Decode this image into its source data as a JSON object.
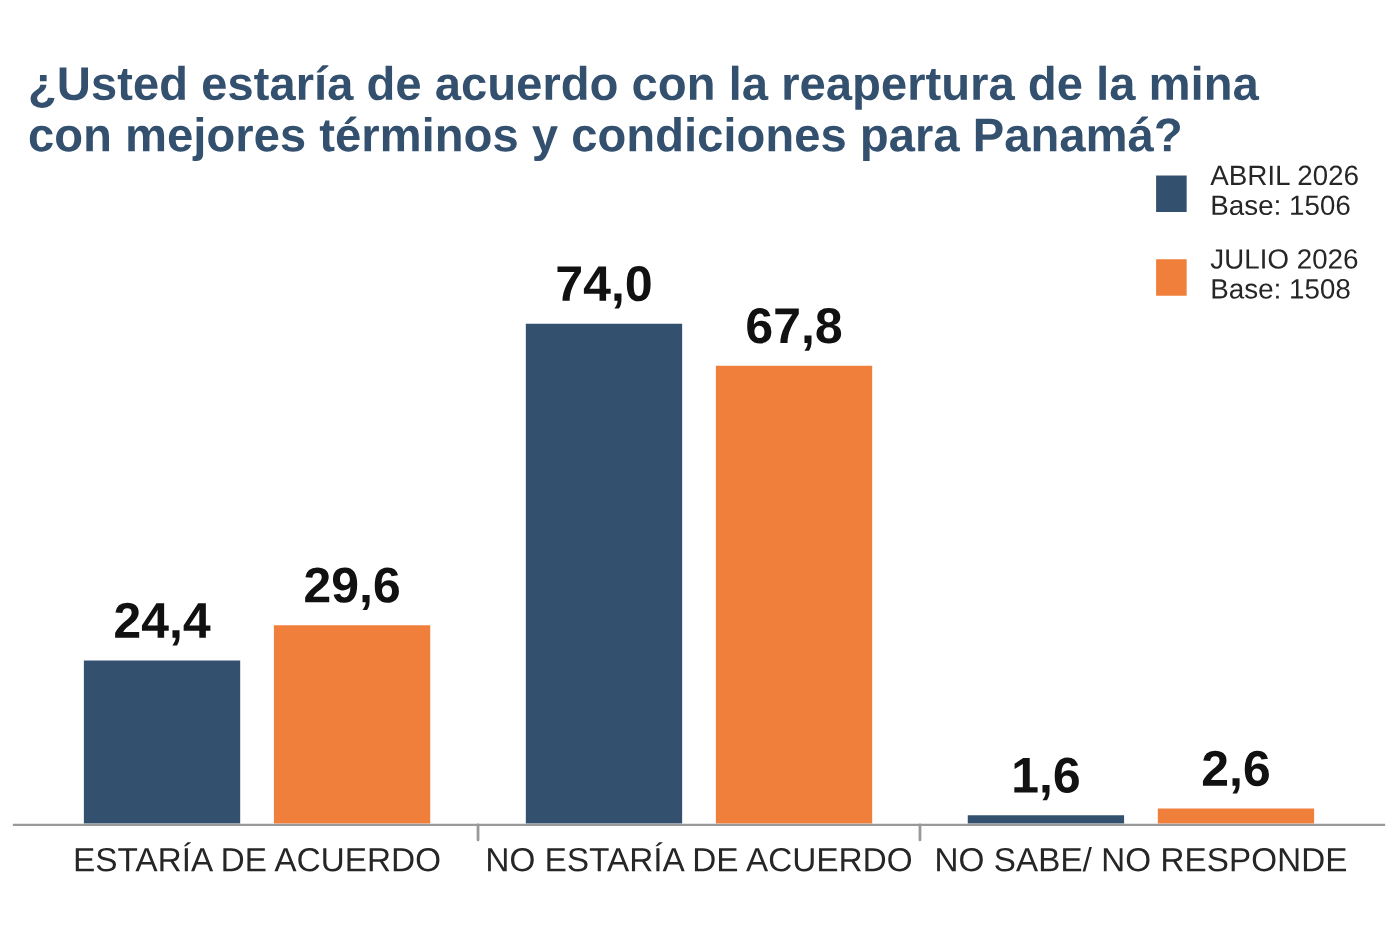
{
  "chart_data": {
    "type": "bar",
    "title": "¿Usted estaría de acuerdo con la reapertura de la mina\ncon mejores términos y condiciones para Panamá?",
    "categories": [
      "ESTARÍA DE ACUERDO",
      "NO ESTARÍA DE ACUERDO",
      "NO SABE/ NO RESPONDE"
    ],
    "series": [
      {
        "name": "ABRIL 2026\nBase: 1506",
        "color": "#34506f",
        "values": [
          24.4,
          74.0,
          1.6
        ],
        "value_labels": [
          "24,4",
          "74,0",
          "1,6"
        ]
      },
      {
        "name": "JULIO 2026\nBase: 1508",
        "color": "#f07f3c",
        "values": [
          29.6,
          67.8,
          2.6
        ],
        "value_labels": [
          "29,6",
          "67,8",
          "2,6"
        ]
      }
    ],
    "legend": "top right",
    "grid": false,
    "tick_labels": "x"
  }
}
